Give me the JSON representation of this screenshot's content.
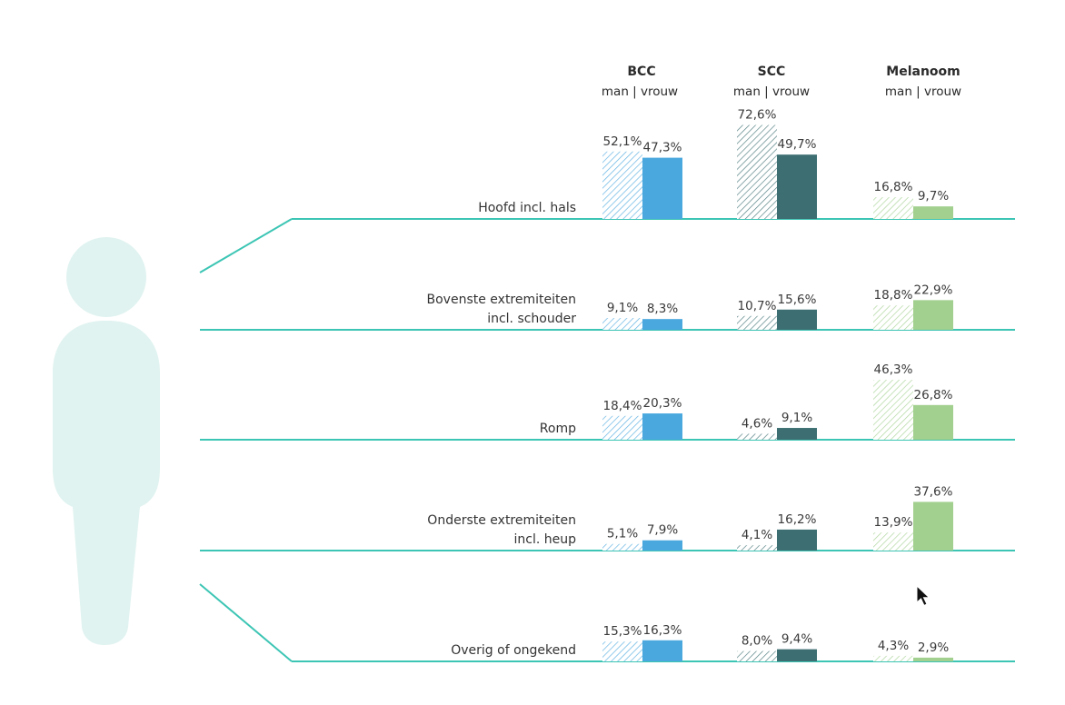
{
  "colors": {
    "line": "#3cc5b4",
    "figure": "#e0f3f0",
    "text": "#333333",
    "bcc": "#4aa8de",
    "scc": "#3d6f72",
    "melanoom": "#a2d08e"
  },
  "figure_icon": "person-silhouette-icon",
  "cursor_icon": "mouse-pointer-icon",
  "chart_data": {
    "type": "bar",
    "orientation": "vertical",
    "unit": "%",
    "categories": [
      "Hoofd incl. hals",
      "Bovenste extremiteiten incl. schouder",
      "Romp",
      "Onderste extremiteiten incl. heup",
      "Overig of ongekend"
    ],
    "category_lines": [
      [
        "Hoofd incl. hals"
      ],
      [
        "Bovenste extremiteiten",
        "incl. schouder"
      ],
      [
        "Romp"
      ],
      [
        "Onderste extremiteiten",
        "incl. heup"
      ],
      [
        "Overig of ongekend"
      ]
    ],
    "groups": [
      {
        "name": "BCC",
        "subtitle": "man | vrouw",
        "color": "#4aa8de",
        "man": {
          "values": [
            52.1,
            9.1,
            18.4,
            5.1,
            15.3
          ],
          "labels": [
            "52,1%",
            "9,1%",
            "18,4%",
            "5,1%",
            "15,3%"
          ]
        },
        "vrouw": {
          "values": [
            47.3,
            8.3,
            20.3,
            7.9,
            16.3
          ],
          "labels": [
            "47,3%",
            "8,3%",
            "20,3%",
            "7,9%",
            "16,3%"
          ]
        }
      },
      {
        "name": "SCC",
        "subtitle": "man | vrouw",
        "color": "#3d6f72",
        "man": {
          "values": [
            72.6,
            10.7,
            4.6,
            4.1,
            8.0
          ],
          "labels": [
            "72,6%",
            "10,7%",
            "4,6%",
            "4,1%",
            "8,0%"
          ]
        },
        "vrouw": {
          "values": [
            49.7,
            15.6,
            9.1,
            16.2,
            9.4
          ],
          "labels": [
            "49,7%",
            "15,6%",
            "9,1%",
            "16,2%",
            "9,4%"
          ]
        }
      },
      {
        "name": "Melanoom",
        "subtitle": "man | vrouw",
        "color": "#a2d08e",
        "man": {
          "values": [
            16.8,
            18.8,
            46.3,
            13.9,
            4.3
          ],
          "labels": [
            "16,8%",
            "18,8%",
            "46,3%",
            "13,9%",
            "4,3%"
          ]
        },
        "vrouw": {
          "values": [
            9.7,
            22.9,
            26.8,
            37.6,
            2.9
          ],
          "labels": [
            "9,7%",
            "22,9%",
            "26,8%",
            "37,6%",
            "2,9%"
          ]
        }
      }
    ],
    "bar_style": {
      "man": "hatched",
      "vrouw": "solid"
    },
    "grid": false,
    "legend": "none"
  }
}
